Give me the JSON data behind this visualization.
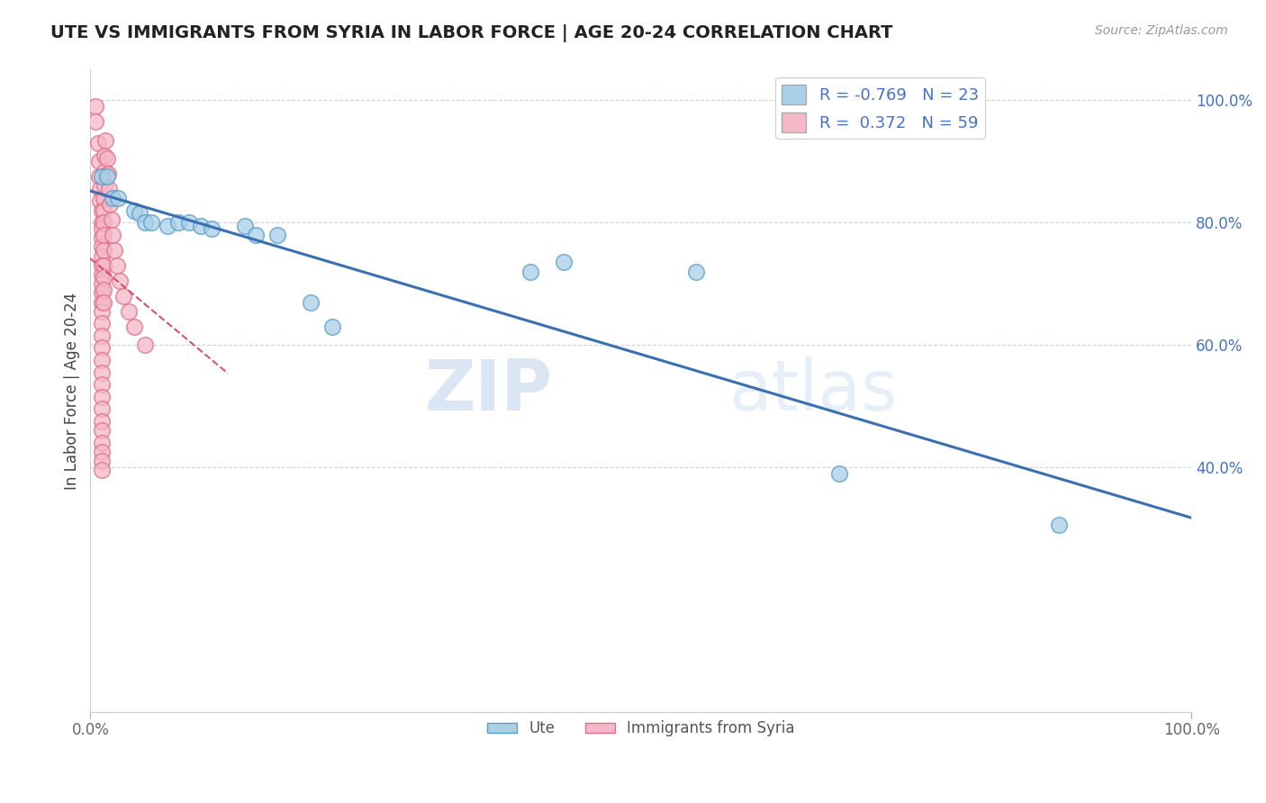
{
  "title": "UTE VS IMMIGRANTS FROM SYRIA IN LABOR FORCE | AGE 20-24 CORRELATION CHART",
  "source": "Source: ZipAtlas.com",
  "ylabel": "In Labor Force | Age 20-24",
  "ute_color": "#a8d0e8",
  "ute_edge_color": "#5a9ec9",
  "syria_color": "#f4b8c8",
  "syria_edge_color": "#e0708a",
  "trend_ute_color": "#3a6fb0",
  "trend_syria_color": "#d04060",
  "R_ute": -0.769,
  "N_ute": 23,
  "R_syria": 0.372,
  "N_syria": 59,
  "legend_box_ute": "#a8d0e8",
  "legend_box_syria": "#f4b8c8",
  "watermark_zip": "ZIP",
  "watermark_atlas": "atlas",
  "ute_points": [
    [
      0.01,
      0.875
    ],
    [
      0.015,
      0.875
    ],
    [
      0.02,
      0.84
    ],
    [
      0.025,
      0.84
    ],
    [
      0.04,
      0.82
    ],
    [
      0.045,
      0.815
    ],
    [
      0.05,
      0.8
    ],
    [
      0.055,
      0.8
    ],
    [
      0.07,
      0.795
    ],
    [
      0.08,
      0.8
    ],
    [
      0.09,
      0.8
    ],
    [
      0.1,
      0.795
    ],
    [
      0.11,
      0.79
    ],
    [
      0.14,
      0.795
    ],
    [
      0.15,
      0.78
    ],
    [
      0.17,
      0.78
    ],
    [
      0.2,
      0.67
    ],
    [
      0.22,
      0.63
    ],
    [
      0.4,
      0.72
    ],
    [
      0.43,
      0.735
    ],
    [
      0.55,
      0.72
    ],
    [
      0.68,
      0.39
    ],
    [
      0.88,
      0.305
    ]
  ],
  "syria_points": [
    [
      0.005,
      0.99
    ],
    [
      0.005,
      0.965
    ],
    [
      0.007,
      0.93
    ],
    [
      0.008,
      0.9
    ],
    [
      0.008,
      0.875
    ],
    [
      0.009,
      0.855
    ],
    [
      0.009,
      0.835
    ],
    [
      0.01,
      0.82
    ],
    [
      0.01,
      0.8
    ],
    [
      0.01,
      0.79
    ],
    [
      0.01,
      0.775
    ],
    [
      0.01,
      0.76
    ],
    [
      0.01,
      0.745
    ],
    [
      0.01,
      0.73
    ],
    [
      0.01,
      0.715
    ],
    [
      0.01,
      0.7
    ],
    [
      0.01,
      0.685
    ],
    [
      0.01,
      0.67
    ],
    [
      0.01,
      0.655
    ],
    [
      0.01,
      0.635
    ],
    [
      0.01,
      0.615
    ],
    [
      0.01,
      0.595
    ],
    [
      0.01,
      0.575
    ],
    [
      0.01,
      0.555
    ],
    [
      0.01,
      0.535
    ],
    [
      0.01,
      0.515
    ],
    [
      0.01,
      0.495
    ],
    [
      0.01,
      0.475
    ],
    [
      0.01,
      0.46
    ],
    [
      0.01,
      0.44
    ],
    [
      0.01,
      0.425
    ],
    [
      0.01,
      0.41
    ],
    [
      0.01,
      0.395
    ],
    [
      0.012,
      0.84
    ],
    [
      0.012,
      0.82
    ],
    [
      0.012,
      0.8
    ],
    [
      0.012,
      0.78
    ],
    [
      0.012,
      0.755
    ],
    [
      0.012,
      0.73
    ],
    [
      0.012,
      0.71
    ],
    [
      0.012,
      0.69
    ],
    [
      0.012,
      0.67
    ],
    [
      0.013,
      0.91
    ],
    [
      0.013,
      0.885
    ],
    [
      0.013,
      0.86
    ],
    [
      0.014,
      0.935
    ],
    [
      0.015,
      0.905
    ],
    [
      0.016,
      0.88
    ],
    [
      0.017,
      0.855
    ],
    [
      0.018,
      0.83
    ],
    [
      0.019,
      0.805
    ],
    [
      0.02,
      0.78
    ],
    [
      0.022,
      0.755
    ],
    [
      0.024,
      0.73
    ],
    [
      0.027,
      0.705
    ],
    [
      0.03,
      0.68
    ],
    [
      0.035,
      0.655
    ],
    [
      0.04,
      0.63
    ],
    [
      0.05,
      0.6
    ]
  ],
  "xlim": [
    0.0,
    1.0
  ],
  "ylim": [
    0.0,
    1.05
  ],
  "background_color": "#ffffff",
  "grid_color": "#c8d4e8",
  "title_color": "#222222",
  "axis_color": "#999999",
  "label_color": "#4472C4"
}
